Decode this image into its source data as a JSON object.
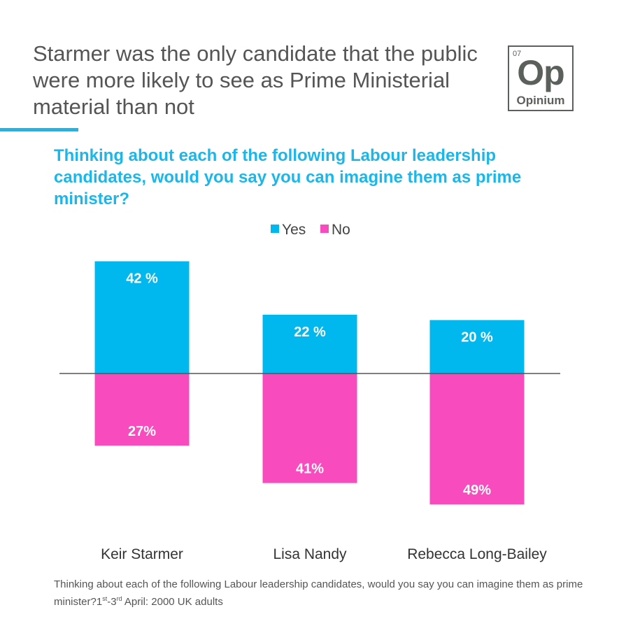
{
  "title": "Starmer was the only candidate that the public were more likely to see as Prime Ministerial material than not",
  "logo": {
    "number": "07",
    "symbol": "Op",
    "name": "Opinium"
  },
  "footnote": {
    "text": "Thinking about each of the following Labour leadership candidates, would you say you can imagine them as prime minister?",
    "date_start": "1",
    "sup1": "st",
    "dash": "-3",
    "sup2": "rd",
    "rest": " April: 2000 UK adults"
  },
  "colors": {
    "yes": "#00b8ee",
    "no": "#f84bbd"
  },
  "chart_data": {
    "type": "bar",
    "title": "Thinking about each of the following Labour leadership candidates, would you say you can imagine them as prime minister?",
    "categories": [
      "Keir Starmer",
      "Lisa Nandy",
      "Rebecca Long-Bailey"
    ],
    "series": [
      {
        "name": "Yes",
        "values": [
          42,
          22,
          20
        ],
        "labels": [
          "42 %",
          "22 %",
          "20 %"
        ]
      },
      {
        "name": "No",
        "values": [
          27,
          41,
          49
        ],
        "labels": [
          "27%",
          "41%",
          "49%"
        ]
      }
    ],
    "legend": "top-center",
    "note": "Yes plotted above zero line, No plotted below"
  }
}
